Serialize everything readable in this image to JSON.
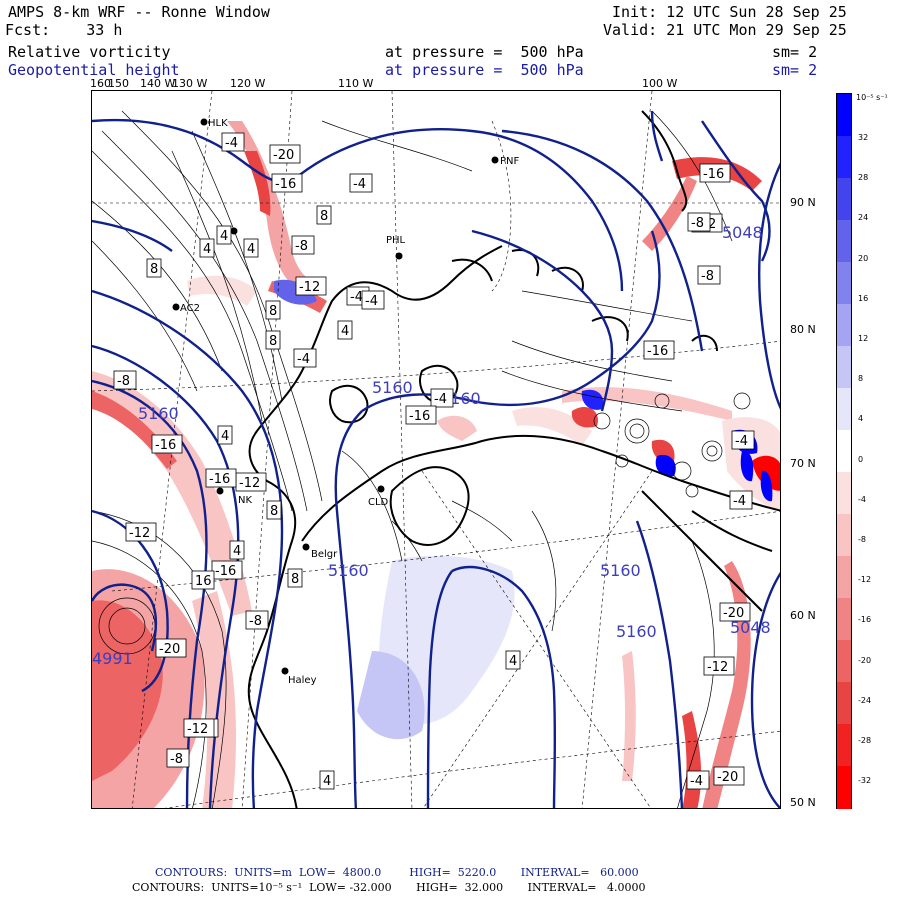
{
  "header": {
    "title": "AMPS 8-km WRF -- Ronne Window",
    "forecast": "Fcst:    33 h",
    "init": "Init: 12 UTC Sun 28 Sep 25",
    "valid": "Valid: 21 UTC Mon 29 Sep 25",
    "field1": {
      "name": "Relative vorticity",
      "level": "at pressure =  500 hPa",
      "sm": "sm= 2"
    },
    "field2": {
      "name": "Geopotential height",
      "level": "at pressure =  500 hPa",
      "sm": "sm= 2"
    }
  },
  "longitude_labels": [
    "160",
    "150",
    "140 W",
    "130 W",
    "120 W",
    "110 W",
    "100 W"
  ],
  "latitude_labels": [
    "90 N",
    "80 N",
    "70 N",
    "60 N",
    "50 N"
  ],
  "stations": [
    "HLK",
    "PNF",
    "PHL",
    "AC2",
    "CLD",
    "Belgr",
    "Haley",
    "NK"
  ],
  "height_labels": [
    "5048",
    "5160",
    "5160",
    "5160",
    "5160",
    "5160",
    "5048",
    "5160",
    "4991"
  ],
  "vorticity_labels": [
    "-4",
    "-20",
    "-16",
    "-4",
    "8",
    "4",
    "-8",
    "4",
    "4",
    "8",
    "-12",
    "8",
    "-4",
    "4",
    "-4",
    "-16",
    "4",
    "-8",
    "-4",
    "8",
    "-12",
    "-16",
    "-8",
    "-16",
    "-12",
    "-16",
    "-20",
    "-12",
    "-8",
    "4",
    "8",
    "-4",
    "-16",
    "-12",
    "-8",
    "-4",
    "-20",
    "-4",
    "16",
    "8",
    "-12",
    "-20",
    "-12",
    "4",
    "4",
    "-16",
    "-8",
    "-4"
  ],
  "colorbar": {
    "unit": "10⁻⁵ s⁻¹",
    "ticks": [
      "32",
      "28",
      "24",
      "20",
      "16",
      "12",
      "8",
      "4",
      "0",
      "-4",
      "-8",
      "-12",
      "-16",
      "-20",
      "-24",
      "-28",
      "-32"
    ],
    "colors": [
      "#0000ff",
      "#2222ff",
      "#4444ee",
      "#6262ea",
      "#8282ee",
      "#a4a4f2",
      "#c6c6f6",
      "#e6e6fb",
      "#ffffff",
      "#fbe0e0",
      "#f8c4c4",
      "#f4a4a4",
      "#f08484",
      "#ec6464",
      "#e84444",
      "#f02222",
      "#ff0000"
    ]
  },
  "footer": {
    "line1": "CONTOURS:  UNITS=m  LOW=  4800.0        HIGH=  5220.0       INTERVAL=   60.000",
    "line2": "CONTOURS:  UNITS=10⁻⁵ s⁻¹  LOW= -32.000       HIGH=  32.000       INTERVAL=   4.0000"
  }
}
